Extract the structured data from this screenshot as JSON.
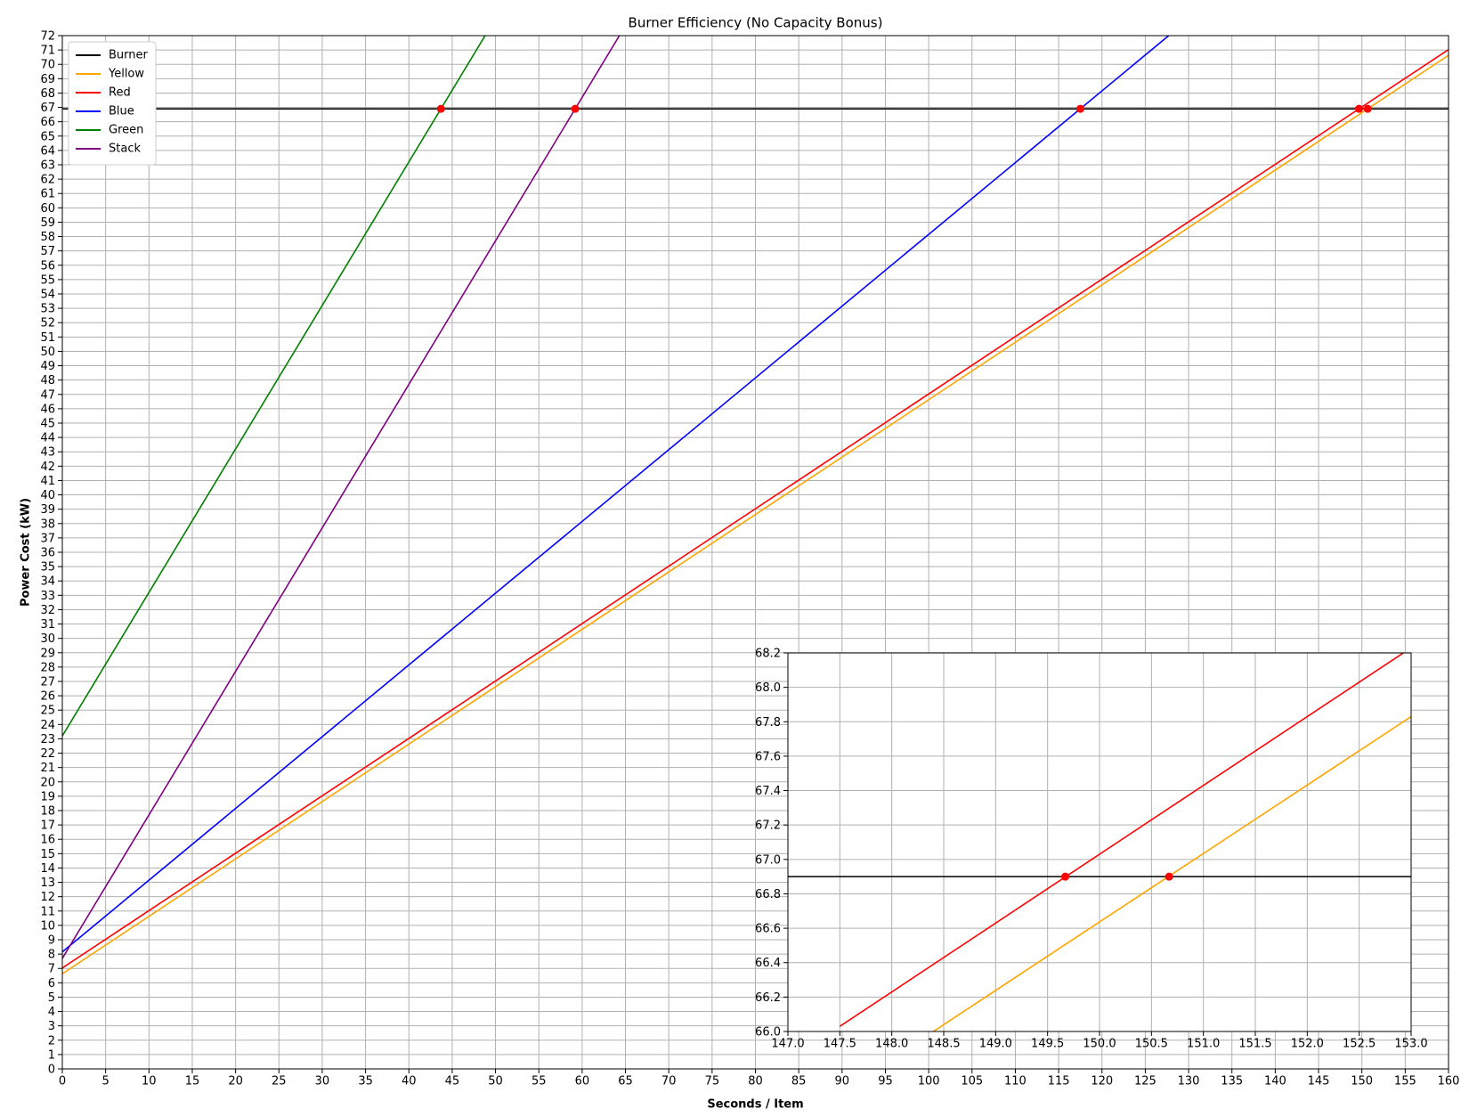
{
  "chart_data": [
    {
      "type": "line",
      "title": "Burner Efficiency (No Capacity Bonus)",
      "x_label": "Seconds / Item",
      "y_label": "Power Cost (kW)",
      "xlim": [
        0,
        160
      ],
      "xticks": [
        0,
        5,
        10,
        15,
        20,
        25,
        30,
        35,
        40,
        45,
        50,
        55,
        60,
        65,
        70,
        75,
        80,
        85,
        90,
        95,
        100,
        105,
        110,
        115,
        120,
        125,
        130,
        135,
        140,
        145,
        150,
        155,
        160
      ],
      "ylim": [
        0,
        72
      ],
      "yticks": [
        0,
        1,
        2,
        3,
        4,
        5,
        6,
        7,
        8,
        9,
        10,
        11,
        12,
        13,
        14,
        15,
        16,
        17,
        18,
        19,
        20,
        21,
        22,
        23,
        24,
        25,
        26,
        27,
        28,
        29,
        30,
        31,
        32,
        33,
        34,
        35,
        36,
        37,
        38,
        39,
        40,
        41,
        42,
        43,
        44,
        45,
        46,
        47,
        48,
        49,
        50,
        51,
        52,
        53,
        54,
        55,
        56,
        57,
        58,
        59,
        60,
        61,
        62,
        63,
        64,
        65,
        66,
        67,
        68,
        69,
        70,
        71,
        72
      ],
      "grid": true,
      "legend": "upper left",
      "series": [
        {
          "name": "Burner",
          "color": "#000000",
          "x": [
            0,
            160
          ],
          "values": [
            66.9,
            66.9
          ]
        },
        {
          "name": "Yellow",
          "color": "#ffa500",
          "x": [
            0,
            160
          ],
          "values": [
            6.63,
            70.63
          ]
        },
        {
          "name": "Red",
          "color": "#ff0000",
          "x": [
            0,
            160
          ],
          "values": [
            7.03,
            71.03
          ]
        },
        {
          "name": "Blue",
          "color": "#0000ff",
          "x": [
            0,
            127.7
          ],
          "values": [
            8.15,
            72
          ]
        },
        {
          "name": "Green",
          "color": "#008000",
          "x": [
            0,
            48.8
          ],
          "values": [
            23.2,
            72
          ]
        },
        {
          "name": "Stack",
          "color": "#800080",
          "x": [
            0,
            64.3
          ],
          "values": [
            7.7,
            72
          ]
        }
      ],
      "markers": {
        "color": "#ff0000",
        "x": [
          43.7,
          59.2,
          117.5,
          149.67,
          150.67
        ],
        "values": [
          66.9,
          66.9,
          66.9,
          66.9,
          66.9
        ]
      }
    },
    {
      "type": "line",
      "xlim": [
        147,
        153
      ],
      "xticks": [
        {
          "value": 147,
          "label": "147.0"
        },
        147.5,
        {
          "value": 148,
          "label": "148.0"
        },
        148.5,
        {
          "value": 149,
          "label": "149.0"
        },
        149.5,
        {
          "value": 150,
          "label": "150.0"
        },
        150.5,
        {
          "value": 151,
          "label": "151.0"
        },
        151.5,
        {
          "value": 152,
          "label": "152.0"
        },
        152.5,
        {
          "value": 153,
          "label": "153.0"
        }
      ],
      "ylim": [
        66.0,
        68.2
      ],
      "yticks": [
        {
          "value": 66,
          "label": "66.0"
        },
        66.2,
        66.4,
        66.6,
        66.8,
        {
          "value": 67,
          "label": "67.0"
        },
        67.2,
        67.4,
        67.6,
        67.8,
        {
          "value": 68,
          "label": "68.0"
        },
        68.2
      ],
      "grid": true,
      "series": [
        {
          "color": "#000000",
          "x": [
            147,
            153
          ],
          "values": [
            66.9,
            66.9
          ]
        },
        {
          "color": "#ff0000",
          "x": [
            147.5,
            153
          ],
          "values": [
            66.03,
            68.23
          ]
        },
        {
          "color": "#ffa500",
          "x": [
            148.4,
            153
          ],
          "values": [
            66.0,
            67.83
          ]
        }
      ],
      "markers": {
        "color": "#ff0000",
        "x": [
          149.67,
          150.67
        ],
        "values": [
          66.9,
          66.9
        ]
      }
    }
  ]
}
